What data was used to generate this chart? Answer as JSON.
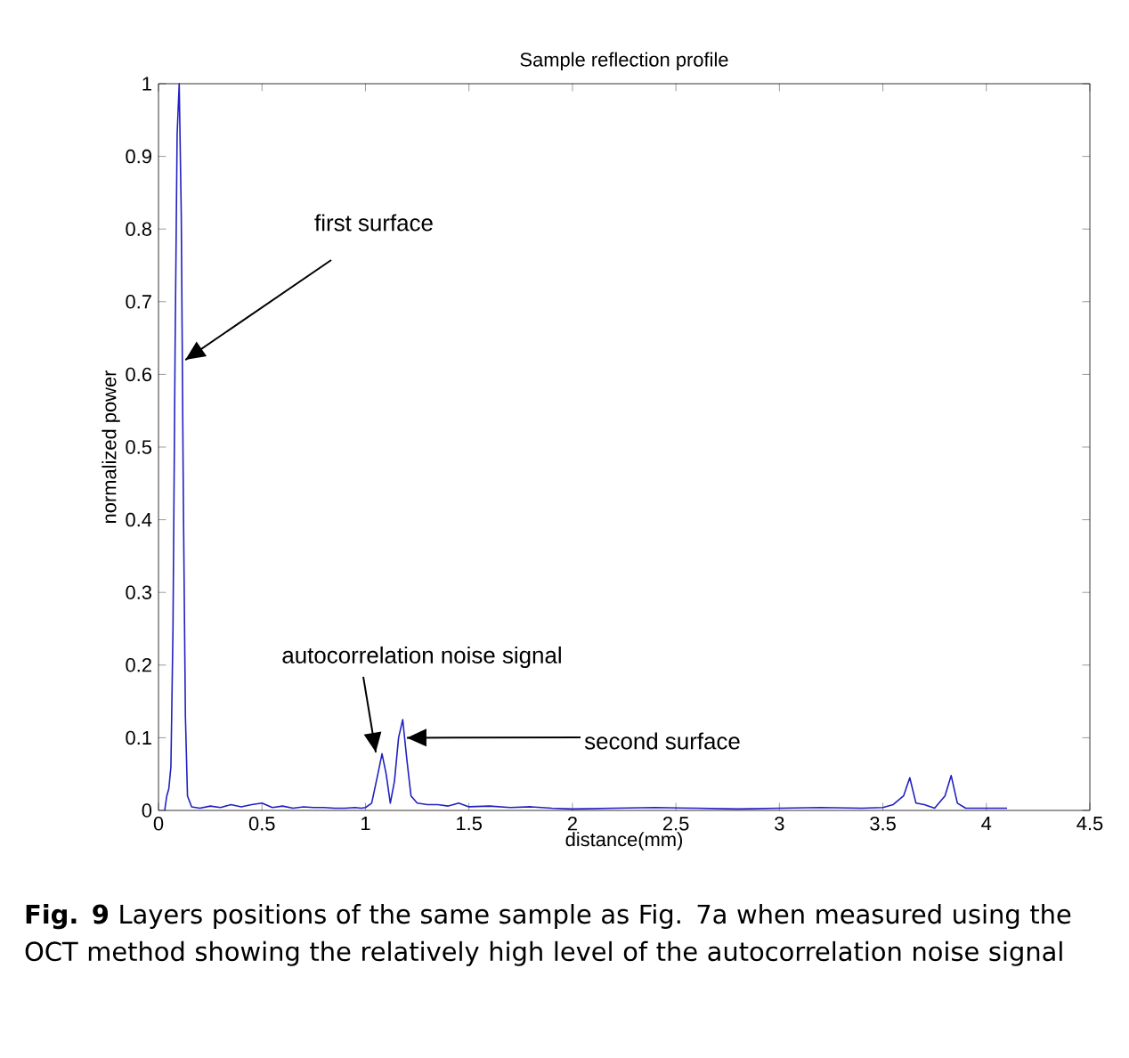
{
  "chart_data": {
    "type": "line",
    "title": "Sample reflection profile",
    "xlabel": "distance(mm)",
    "ylabel": "normalized power",
    "xlim": [
      0,
      4.5
    ],
    "ylim": [
      0,
      1
    ],
    "xticks": [
      0,
      0.5,
      1,
      1.5,
      2,
      2.5,
      3,
      3.5,
      4,
      4.5
    ],
    "yticks": [
      0,
      0.1,
      0.2,
      0.3,
      0.4,
      0.5,
      0.6,
      0.7,
      0.8,
      0.9,
      1
    ],
    "grid": false,
    "marker": "none",
    "line_style": "solid",
    "series": [
      {
        "color": "#2020c0",
        "x": [
          0.03,
          0.04,
          0.05,
          0.06,
          0.07,
          0.08,
          0.09,
          0.1,
          0.11,
          0.12,
          0.13,
          0.14,
          0.16,
          0.2,
          0.25,
          0.3,
          0.35,
          0.4,
          0.45,
          0.5,
          0.55,
          0.6,
          0.65,
          0.7,
          0.75,
          0.8,
          0.85,
          0.9,
          0.95,
          0.98,
          1.0,
          1.03,
          1.06,
          1.08,
          1.1,
          1.12,
          1.14,
          1.16,
          1.18,
          1.2,
          1.22,
          1.25,
          1.3,
          1.35,
          1.4,
          1.45,
          1.5,
          1.6,
          1.7,
          1.8,
          1.9,
          2.0,
          2.2,
          2.4,
          2.6,
          2.8,
          3.0,
          3.2,
          3.4,
          3.5,
          3.55,
          3.6,
          3.63,
          3.66,
          3.7,
          3.75,
          3.8,
          3.83,
          3.86,
          3.9,
          4.0,
          4.1
        ],
        "values": [
          0,
          0.02,
          0.03,
          0.06,
          0.25,
          0.63,
          0.93,
          1.0,
          0.82,
          0.43,
          0.13,
          0.02,
          0.005,
          0.003,
          0.006,
          0.004,
          0.008,
          0.005,
          0.008,
          0.01,
          0.004,
          0.006,
          0.003,
          0.005,
          0.004,
          0.004,
          0.003,
          0.003,
          0.004,
          0.003,
          0.004,
          0.01,
          0.05,
          0.078,
          0.05,
          0.01,
          0.04,
          0.1,
          0.125,
          0.07,
          0.02,
          0.01,
          0.008,
          0.008,
          0.006,
          0.01,
          0.005,
          0.006,
          0.004,
          0.005,
          0.003,
          0.002,
          0.003,
          0.004,
          0.003,
          0.002,
          0.003,
          0.004,
          0.003,
          0.004,
          0.008,
          0.02,
          0.045,
          0.01,
          0.008,
          0.003,
          0.02,
          0.048,
          0.01,
          0.003,
          0.003,
          0.003
        ]
      }
    ],
    "annotations": [
      {
        "text": "first surface",
        "x": 0.13,
        "y": 0.62
      },
      {
        "text": "autocorrelation noise signal",
        "x": 1.05,
        "y": 0.08
      },
      {
        "text": "second surface",
        "x": 1.2,
        "y": 0.1
      },
      "**Fig. 9** Layers positions of the same sample as Fig. 7a when measured using the OCT method showing the relatively high level of the autocorrelation noise signal"
    ]
  }
}
